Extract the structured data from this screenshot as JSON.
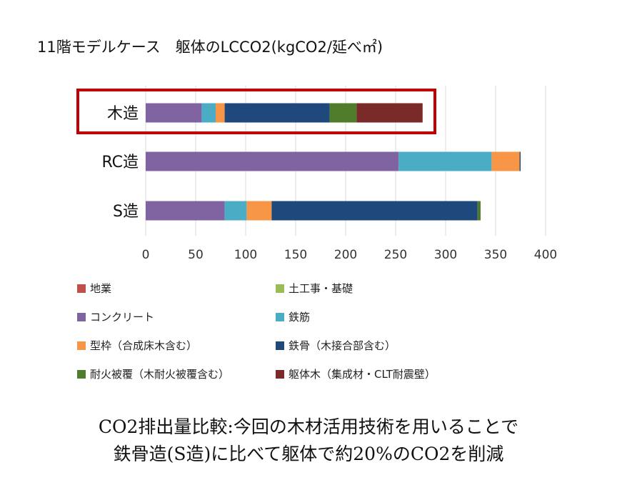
{
  "chart_data": {
    "type": "bar",
    "orientation": "horizontal",
    "stacked": true,
    "title": "11階モデルケース　躯体のLCCO2(kgCO2/延べ㎡)",
    "categories": [
      "木造",
      "RC造",
      "S造"
    ],
    "highlighted_category": "木造",
    "xlim": [
      0,
      400
    ],
    "x_ticks": [
      "0",
      "50",
      "100",
      "150",
      "200",
      "250",
      "300",
      "350",
      "400"
    ],
    "grid": true,
    "legend_position": "bottom",
    "series": [
      {
        "name": "地業",
        "color": "#c0504d",
        "values": [
          0,
          0,
          0
        ]
      },
      {
        "name": "土工事・基礎",
        "color": "#9bbb59",
        "values": [
          0,
          0,
          0
        ]
      },
      {
        "name": "コンクリート",
        "color": "#8064a2",
        "values": [
          56,
          253,
          79
        ]
      },
      {
        "name": "鉄筋",
        "color": "#4bacc6",
        "values": [
          14,
          93,
          22
        ]
      },
      {
        "name": "型枠（合成床木含む）",
        "color": "#f79646",
        "values": [
          9,
          28,
          25
        ]
      },
      {
        "name": "鉄骨（木接合部含む）",
        "color": "#1f497d",
        "values": [
          105,
          1,
          206
        ]
      },
      {
        "name": "耐火被覆（木耐火被覆含む）",
        "color": "#4f7d2c",
        "values": [
          27,
          0,
          3
        ]
      },
      {
        "name": "躯体木（集成材・CLT耐震壁）",
        "color": "#7b2a2a",
        "values": [
          66,
          0,
          0
        ]
      }
    ]
  },
  "caption": {
    "line1": "CO2排出量比較:今回の木材活用技術を用いることで",
    "line2": "鉄骨造(S造)に比べて躯体で約20%のCO2を削減"
  }
}
